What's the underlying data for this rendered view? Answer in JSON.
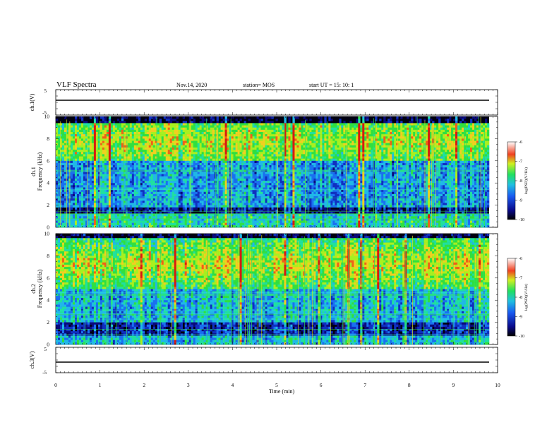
{
  "header": {
    "title": "VLF Spectra",
    "date": "Nov.14, 2020",
    "station": "station= MOS",
    "start": "start  UT =   15: 10: 1"
  },
  "chart_data": [
    {
      "type": "line",
      "panel": "ch1-waveform",
      "ylabel": "ch.1(V)",
      "yticks": [
        "5",
        "0",
        "-5"
      ],
      "ylim": [
        -5,
        5
      ],
      "series": [
        {
          "name": "",
          "level": 0.0
        }
      ]
    },
    {
      "type": "heatmap",
      "panel": "ch1-spectrogram",
      "ylabel": "ch.1\nFrequency (kHz)",
      "ylabel_line1": "ch.1",
      "ylabel_line2": "Frequency (kHz)",
      "yticks": [
        "0",
        "2",
        "4",
        "6",
        "8",
        "10"
      ],
      "ylim": [
        0,
        10
      ],
      "colorbar": {
        "label": "log(PSD)(V²/Hz)",
        "ticks": [
          "-6",
          "-7",
          "-8",
          "-9",
          "-10"
        ],
        "range": [
          -10,
          -6
        ]
      }
    },
    {
      "type": "heatmap",
      "panel": "ch2-spectrogram",
      "ylabel_line1": "ch.2",
      "ylabel_line2": "Frequency (kHz)",
      "yticks": [
        "0",
        "2",
        "4",
        "6",
        "8",
        "10"
      ],
      "ylim": [
        0,
        10
      ],
      "colorbar": {
        "label": "log(PSD)(V²/Hz)",
        "ticks": [
          "-6",
          "-7",
          "-8",
          "-9",
          "-10"
        ],
        "range": [
          -10,
          -6
        ]
      }
    },
    {
      "type": "line",
      "panel": "ch3-waveform",
      "ylabel": "ch.3(V)",
      "yticks": [
        "5",
        "0",
        "-5"
      ],
      "ylim": [
        -5,
        5
      ],
      "series": [
        {
          "name": "",
          "level": 0.0
        }
      ]
    }
  ],
  "xaxis": {
    "label": "Time  (min)",
    "ticks": [
      "0",
      "1",
      "2",
      "3",
      "4",
      "5",
      "6",
      "7",
      "8",
      "9",
      "10"
    ],
    "xlim": [
      0,
      10
    ]
  },
  "colors": {
    "background": "#000000",
    "low": "#0a1a9a",
    "mid": "#2ad07a",
    "high": "#e23a1a"
  }
}
